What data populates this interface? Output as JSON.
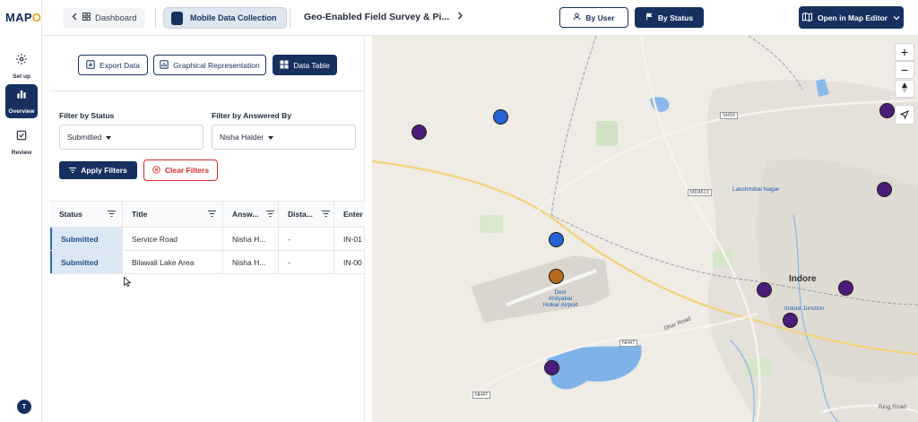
{
  "app": {
    "logo_main": "MAP",
    "logo_accent": "OG"
  },
  "rail": {
    "items": [
      {
        "label": "Set up",
        "icon": "gear-icon"
      },
      {
        "label": "Overview",
        "icon": "bar-chart-icon",
        "active": true
      },
      {
        "label": "Review",
        "icon": "checkbox-icon"
      }
    ],
    "avatar_initial": "T"
  },
  "topbar": {
    "dashboard_label": "Dashboard",
    "project_label": "Mobile Data Collection",
    "page_title": "Geo-Enabled Field Survey & Pi...",
    "by_user_label": "By User",
    "by_status_label": "By Status",
    "open_map_label": "Open in Map Editor"
  },
  "panel": {
    "tabs": [
      {
        "label": "Export Data",
        "active": false
      },
      {
        "label": "Graphical Representation",
        "active": false
      },
      {
        "label": "Data Table",
        "active": true
      }
    ],
    "filter_status_label": "Filter by Status",
    "filter_status_value": "Submitted",
    "filter_answered_label": "Filter by Answered By",
    "filter_answered_value": "Nisha Halder",
    "apply_label": "Apply Filters",
    "clear_label": "Clear Filters"
  },
  "table": {
    "columns": [
      "Status",
      "Title",
      "Answ...",
      "Dista...",
      "Enter"
    ],
    "rows": [
      [
        "Submitted",
        "Service Road",
        "Nisha H...",
        "-",
        "IN-01"
      ],
      [
        "Submitted",
        "Bilawali Lake Area",
        "Nisha H...",
        "-",
        "IN-00"
      ]
    ]
  },
  "map": {
    "labels": {
      "city": "Indore",
      "lakshmibai": "Lakshmibai Nagar",
      "indore_junction": "Indore Junction",
      "airport": "Devi Ahilyabai Holkar Airport",
      "dhar_road": "Dhar Road",
      "ring_road": "Ring Road",
      "sh59": "SH59",
      "md4513": "MD4513",
      "nh47a": "NH47",
      "nh47b": "NH47"
    },
    "zoom_in": "+",
    "zoom_out": "−",
    "pin_colors": {
      "purple": "#4b1d7a",
      "blue": "#2563d6",
      "orange": "#b86a1f"
    }
  }
}
